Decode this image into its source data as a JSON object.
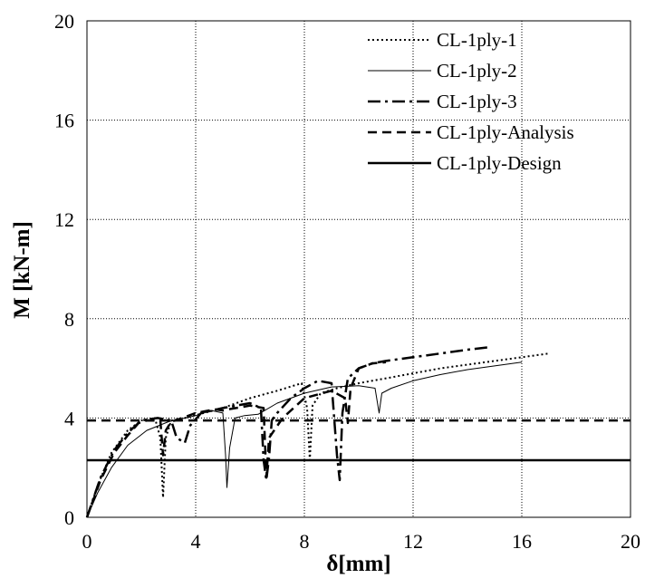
{
  "chart_data": {
    "type": "line",
    "title": "",
    "xlabel": "δ[mm]",
    "ylabel": "M [kN-m]",
    "xlim": [
      0,
      20
    ],
    "ylim": [
      0,
      20
    ],
    "xticks": [
      "0",
      "4",
      "8",
      "12",
      "16",
      "20"
    ],
    "yticks": [
      "0",
      "4",
      "8",
      "12",
      "16",
      "20"
    ],
    "grid": true,
    "legend_position": "top-right",
    "series": [
      {
        "name": "CL-1ply-1",
        "style": "dotted",
        "points": [
          [
            0,
            0
          ],
          [
            0.4,
            1.3
          ],
          [
            0.9,
            2.6
          ],
          [
            1.5,
            3.5
          ],
          [
            2.0,
            3.9
          ],
          [
            2.5,
            4.0
          ],
          [
            2.7,
            3.2
          ],
          [
            2.8,
            0.8
          ],
          [
            2.9,
            3.2
          ],
          [
            3.1,
            3.9
          ],
          [
            3.6,
            4.0
          ],
          [
            4.3,
            4.2
          ],
          [
            5.0,
            4.4
          ],
          [
            6.0,
            4.8
          ],
          [
            7.0,
            5.1
          ],
          [
            7.9,
            5.4
          ],
          [
            8.1,
            4.4
          ],
          [
            8.2,
            2.3
          ],
          [
            8.3,
            4.5
          ],
          [
            8.6,
            5.0
          ],
          [
            9.2,
            5.2
          ],
          [
            10.0,
            5.4
          ],
          [
            11.0,
            5.6
          ],
          [
            12.0,
            5.8
          ],
          [
            13.0,
            6.0
          ],
          [
            14.0,
            6.15
          ],
          [
            15.0,
            6.3
          ],
          [
            16.0,
            6.45
          ],
          [
            17.0,
            6.6
          ]
        ]
      },
      {
        "name": "CL-1ply-2",
        "style": "solid-thin",
        "points": [
          [
            0,
            0
          ],
          [
            0.4,
            1.0
          ],
          [
            0.9,
            2.0
          ],
          [
            1.5,
            2.9
          ],
          [
            2.2,
            3.5
          ],
          [
            3.0,
            3.85
          ],
          [
            4.0,
            4.1
          ],
          [
            4.6,
            4.3
          ],
          [
            5.0,
            4.2
          ],
          [
            5.1,
            2.5
          ],
          [
            5.15,
            1.2
          ],
          [
            5.25,
            2.8
          ],
          [
            5.45,
            4.0
          ],
          [
            5.8,
            4.1
          ],
          [
            6.3,
            4.15
          ],
          [
            7.0,
            4.6
          ],
          [
            8.0,
            5.0
          ],
          [
            9.0,
            5.25
          ],
          [
            10.0,
            5.3
          ],
          [
            10.6,
            5.2
          ],
          [
            10.75,
            4.2
          ],
          [
            10.85,
            5.0
          ],
          [
            11.2,
            5.2
          ],
          [
            12.0,
            5.5
          ],
          [
            13.0,
            5.75
          ],
          [
            14.0,
            5.95
          ],
          [
            15.0,
            6.1
          ],
          [
            16.0,
            6.25
          ]
        ]
      },
      {
        "name": "CL-1ply-3",
        "style": "dash-dot",
        "points": [
          [
            0,
            0
          ],
          [
            0.5,
            1.6
          ],
          [
            1.0,
            2.7
          ],
          [
            1.5,
            3.4
          ],
          [
            2.0,
            3.9
          ],
          [
            2.6,
            4.0
          ],
          [
            3.1,
            3.9
          ],
          [
            3.3,
            3.2
          ],
          [
            3.6,
            3.0
          ],
          [
            3.8,
            3.7
          ],
          [
            4.2,
            4.2
          ],
          [
            5.0,
            4.4
          ],
          [
            6.0,
            4.6
          ],
          [
            6.4,
            4.4
          ],
          [
            6.5,
            2.3
          ],
          [
            6.6,
            1.5
          ],
          [
            6.7,
            2.4
          ],
          [
            6.8,
            3.9
          ],
          [
            7.0,
            4.2
          ],
          [
            7.5,
            4.8
          ],
          [
            8.0,
            5.2
          ],
          [
            8.5,
            5.5
          ],
          [
            9.0,
            5.4
          ],
          [
            9.2,
            2.5
          ],
          [
            9.3,
            1.5
          ],
          [
            9.4,
            4.2
          ],
          [
            9.6,
            5.6
          ],
          [
            10.0,
            6.0
          ],
          [
            10.5,
            6.2
          ],
          [
            11.0,
            6.3
          ],
          [
            12.0,
            6.45
          ],
          [
            13.0,
            6.6
          ],
          [
            14.0,
            6.75
          ],
          [
            14.8,
            6.85
          ]
        ]
      },
      {
        "name": "CL-1ply-Analysis",
        "style": "dashed",
        "points": [
          [
            0,
            0
          ],
          [
            0.5,
            1.5
          ],
          [
            1.0,
            2.6
          ],
          [
            1.5,
            3.3
          ],
          [
            1.9,
            3.8
          ],
          [
            2.2,
            3.9
          ],
          [
            2.7,
            3.9
          ],
          [
            2.8,
            2.5
          ],
          [
            2.9,
            3.5
          ],
          [
            3.1,
            3.85
          ],
          [
            3.5,
            4.0
          ],
          [
            4.0,
            4.2
          ],
          [
            4.7,
            4.35
          ],
          [
            5.0,
            4.3
          ],
          [
            5.2,
            4.35
          ],
          [
            6.0,
            4.5
          ],
          [
            6.5,
            4.4
          ],
          [
            6.6,
            1.6
          ],
          [
            6.7,
            3.2
          ],
          [
            7.2,
            4.0
          ],
          [
            8.0,
            4.8
          ],
          [
            9.0,
            5.1
          ],
          [
            9.5,
            4.8
          ],
          [
            9.6,
            3.8
          ],
          [
            9.7,
            5.2
          ],
          [
            10.0,
            6.0
          ],
          [
            10.5,
            6.2
          ],
          [
            11.0,
            6.25
          ]
        ]
      },
      {
        "name": "CL-1ply-Design",
        "style": "solid-thick",
        "points": [
          [
            0,
            2.3
          ],
          [
            20,
            2.3
          ]
        ]
      }
    ],
    "reference_lines": [
      {
        "style": "dashed",
        "y": 3.9,
        "x_from": 0,
        "x_to": 20
      }
    ]
  }
}
